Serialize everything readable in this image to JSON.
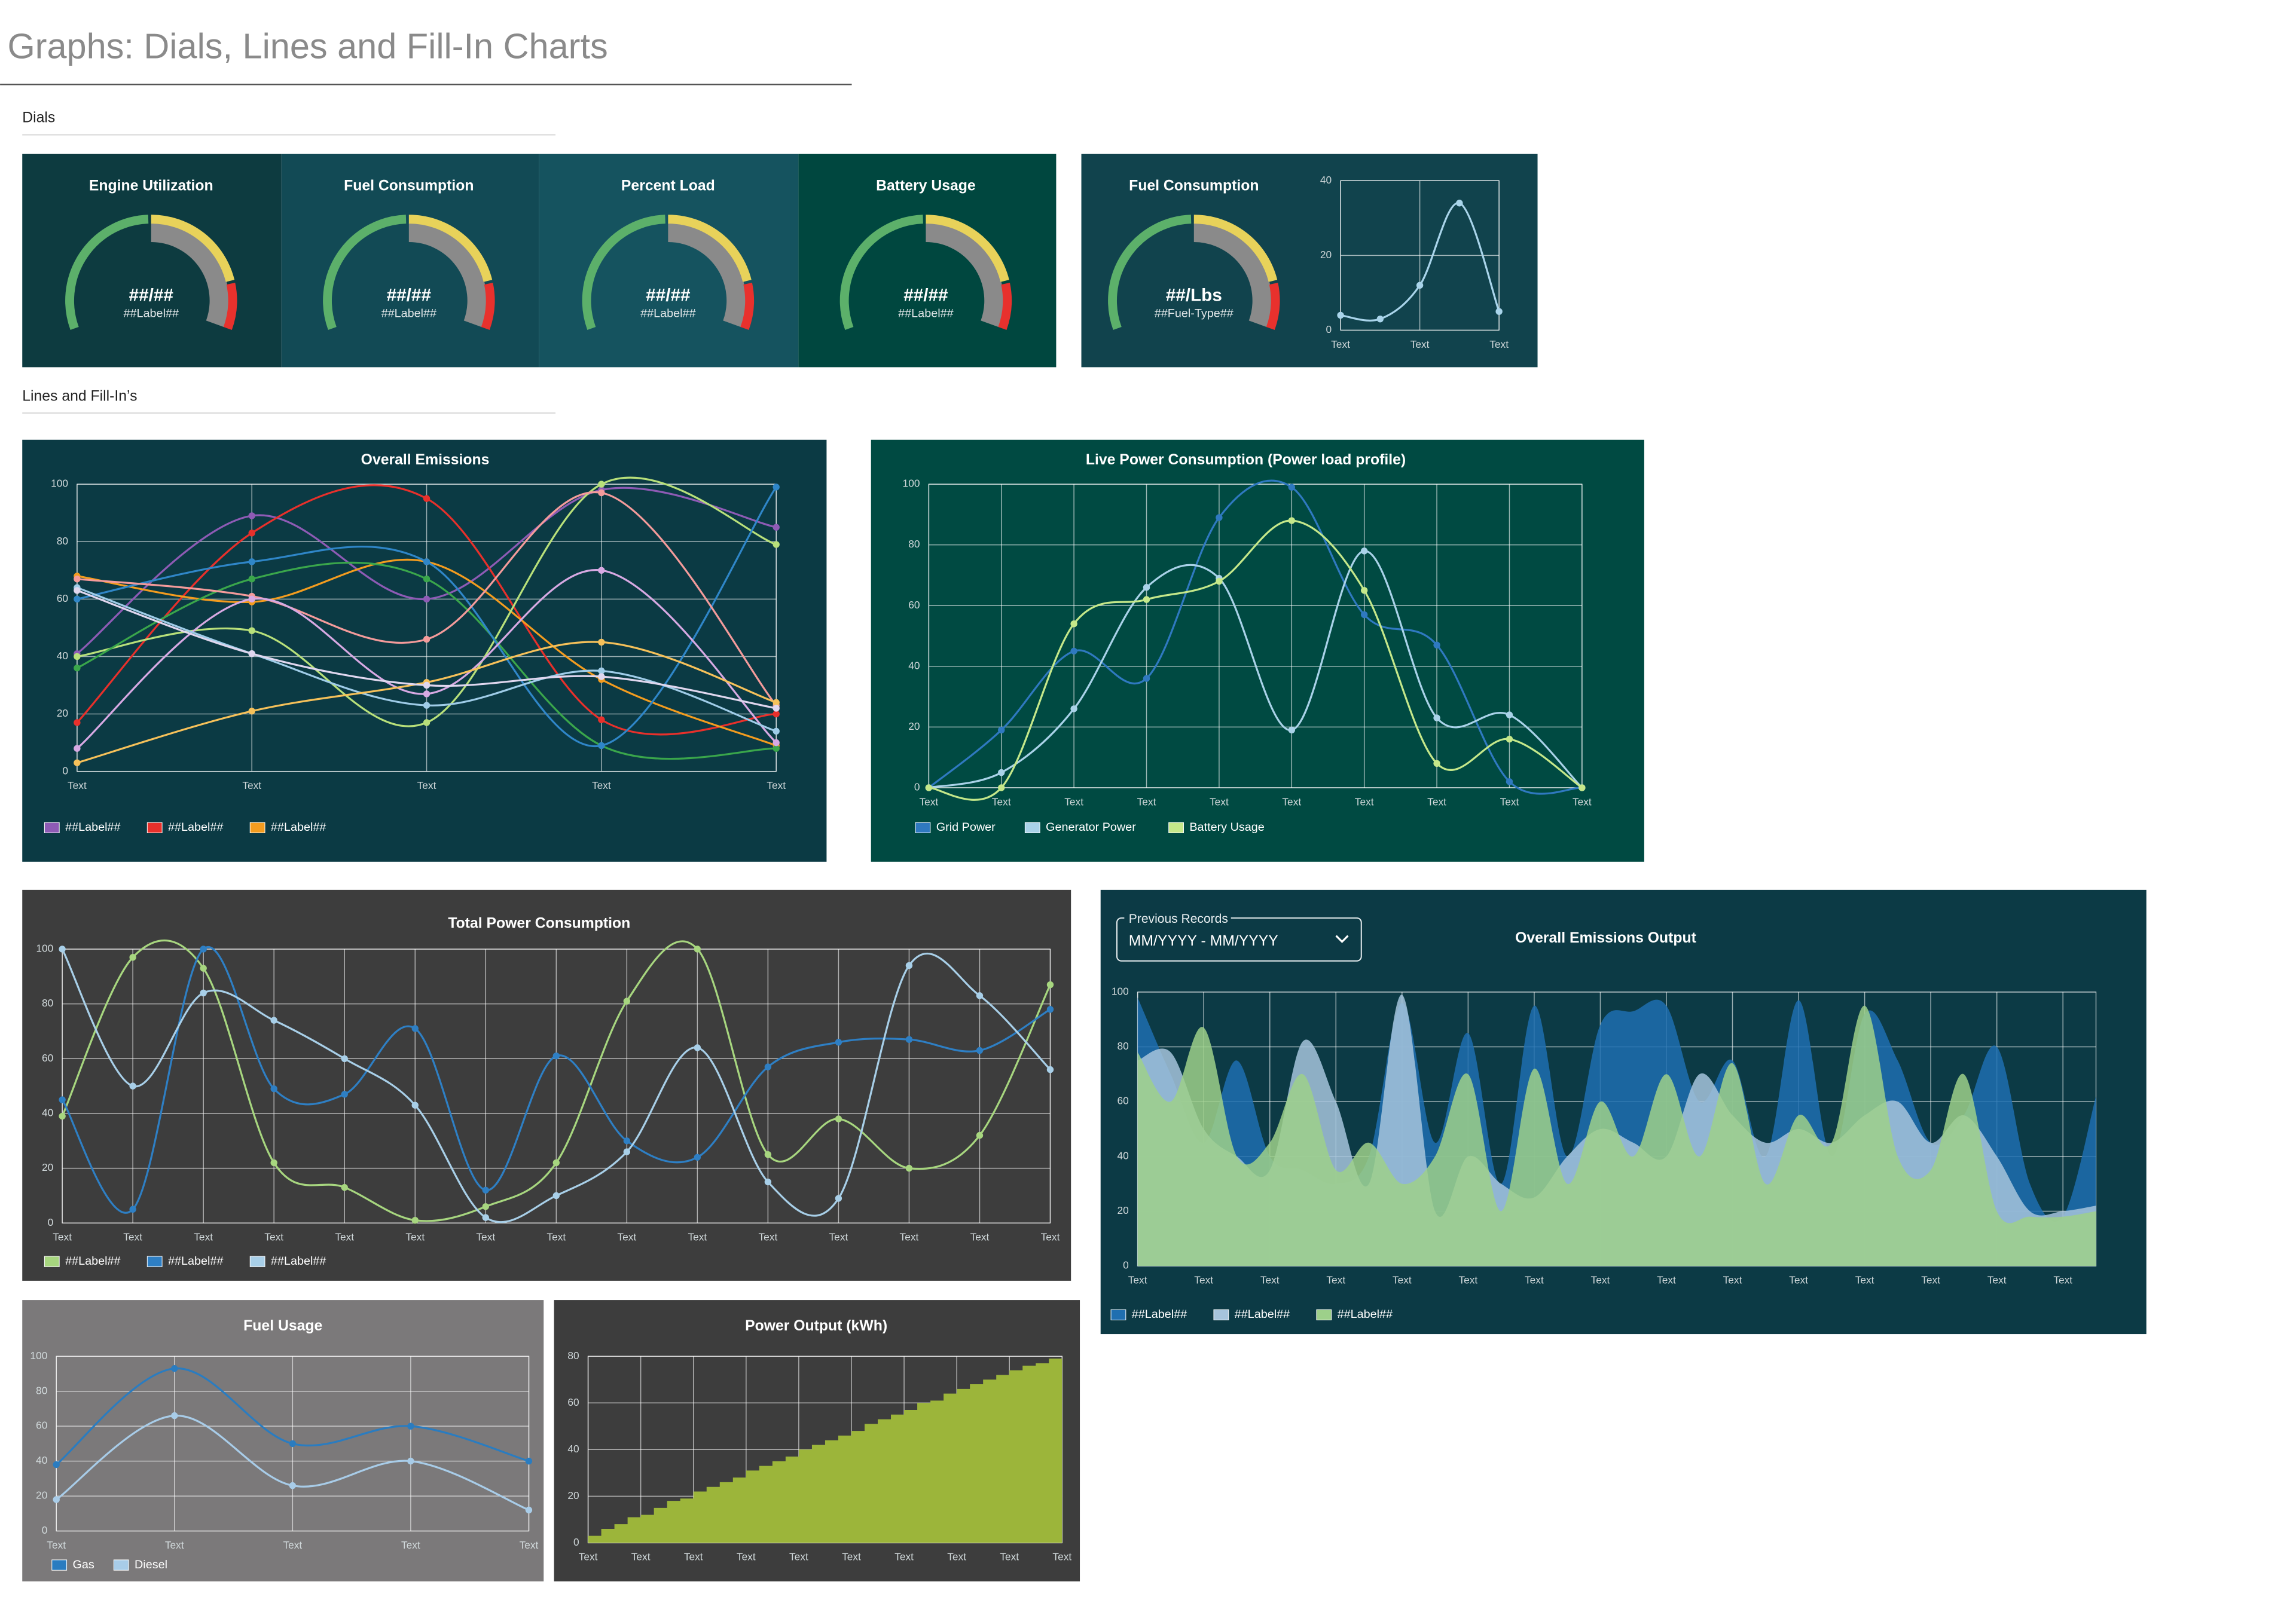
{
  "page": {
    "title": "Graphs: Dials, Lines and Fill-In Charts",
    "sections": [
      "Dials",
      "Lines and Fill-In’s"
    ]
  },
  "dials": [
    {
      "title": "Engine Utilization",
      "value": "##/##",
      "label": "##Label##"
    },
    {
      "title": "Fuel Consumption",
      "value": "##/##",
      "label": "##Label##"
    },
    {
      "title": "Percent Load",
      "value": "##/##",
      "label": "##Label##"
    },
    {
      "title": "Battery Usage",
      "value": "##/##",
      "label": "##Label##"
    },
    {
      "title": "Fuel Consumption",
      "value": "##/Lbs",
      "label": "##Fuel-Type##"
    }
  ],
  "chart_data": [
    {
      "type": "line",
      "categories": [
        "Text",
        null,
        "Text",
        null,
        "Text"
      ],
      "values": [
        4,
        3,
        12,
        34,
        5
      ],
      "color": "#a9d4ea",
      "ylim": [
        0,
        40
      ],
      "yticks": [
        0,
        20,
        40
      ],
      "grid": true
    },
    {
      "type": "line",
      "title": "Overall Emissions",
      "categories": [
        "Text",
        "Text",
        "Text",
        "Text",
        "Text"
      ],
      "series": [
        {
          "name": "##Label##",
          "color": "#8e5bb5",
          "values": [
            41,
            89,
            60,
            98,
            85
          ]
        },
        {
          "name": "##Label##",
          "color": "#e8302b",
          "values": [
            17,
            83,
            95,
            18,
            20
          ]
        },
        {
          "name": "##Label##",
          "color": "#f39c1f",
          "values": [
            68,
            59,
            73,
            32,
            9
          ]
        },
        {
          "color": "#b8e07a",
          "values": [
            40,
            49,
            17,
            100,
            79
          ]
        },
        {
          "color": "#3aa64b",
          "values": [
            36,
            67,
            67,
            9,
            8
          ]
        },
        {
          "color": "#2f86c8",
          "values": [
            60,
            73,
            73,
            9,
            99
          ]
        },
        {
          "color": "#f49b9b",
          "values": [
            67,
            61,
            46,
            97,
            23
          ]
        },
        {
          "color": "#d7a9e3",
          "values": [
            8,
            60,
            27,
            70,
            10
          ]
        },
        {
          "color": "#9fcce8",
          "values": [
            64,
            41,
            23,
            35,
            14
          ]
        },
        {
          "color": "#f6c15a",
          "values": [
            3,
            21,
            31,
            45,
            24
          ]
        },
        {
          "color": "#e0d7ef",
          "values": [
            63,
            41,
            30,
            33,
            22
          ]
        }
      ],
      "ylim": [
        0,
        100
      ],
      "yticks": [
        0,
        20,
        40,
        60,
        80,
        100
      ],
      "grid": true
    },
    {
      "type": "line",
      "title": "Live Power Consumption (Power load profile)",
      "categories": [
        "Text",
        "Text",
        "Text",
        "Text",
        "Text",
        "Text",
        "Text",
        "Text",
        "Text",
        "Text"
      ],
      "series": [
        {
          "name": "Grid Power",
          "color": "#2f79c0",
          "values": [
            0,
            19,
            45,
            36,
            89,
            99,
            57,
            47,
            2,
            0
          ]
        },
        {
          "name": "Generator Power",
          "color": "#a9d2e8",
          "values": [
            0,
            5,
            26,
            66,
            69,
            19,
            78,
            23,
            24,
            0
          ]
        },
        {
          "name": "Battery Usage",
          "color": "#c5e88a",
          "values": [
            0,
            0,
            54,
            62,
            68,
            88,
            65,
            8,
            16,
            0
          ]
        }
      ],
      "ylim": [
        0,
        100
      ],
      "yticks": [
        0,
        20,
        40,
        60,
        80,
        100
      ],
      "grid": true
    },
    {
      "type": "line",
      "title": "Total Power Consumption",
      "categories": [
        "Text",
        "Text",
        "Text",
        "Text",
        "Text",
        "Text",
        "Text",
        "Text",
        "Text",
        "Text",
        "Text",
        "Text",
        "Text",
        "Text",
        "Text"
      ],
      "series": [
        {
          "name": "##Label##",
          "color": "#a7d67f",
          "values": [
            39,
            97,
            93,
            22,
            13,
            1,
            6,
            22,
            81,
            100,
            25,
            38,
            20,
            32,
            87
          ]
        },
        {
          "name": "##Label##",
          "color": "#2e7fc4",
          "values": [
            45,
            5,
            100,
            49,
            47,
            71,
            12,
            61,
            30,
            24,
            57,
            66,
            67,
            63,
            78
          ]
        },
        {
          "name": "##Label##",
          "color": "#a8cfe8",
          "values": [
            100,
            50,
            84,
            74,
            60,
            43,
            2,
            10,
            26,
            64,
            15,
            9,
            94,
            83,
            56
          ]
        }
      ],
      "ylim": [
        0,
        100
      ],
      "yticks": [
        0,
        20,
        40,
        60,
        80,
        100
      ],
      "grid": true
    },
    {
      "type": "area",
      "title": "Overall Emissions Output",
      "filter_label": "Previous Records",
      "filter_value": "MM/YYYY - MM/YYYY",
      "categories": [
        "Text",
        null,
        "Text",
        null,
        "Text",
        null,
        "Text",
        null,
        "Text",
        null,
        "Text",
        null,
        "Text",
        null,
        "Text",
        null,
        "Text",
        null,
        "Text",
        null,
        "Text",
        null,
        "Text",
        null,
        "Text",
        null,
        "Text",
        null,
        "Text",
        null
      ],
      "series": [
        {
          "name": "##Label##",
          "color": "#1f6fb0",
          "values": [
            98,
            70,
            45,
            75,
            40,
            35,
            30,
            40,
            96,
            45,
            85,
            30,
            95,
            40,
            88,
            93,
            95,
            60,
            75,
            40,
            97,
            40,
            92,
            75,
            45,
            55,
            80,
            30,
            18,
            62
          ]
        },
        {
          "name": "##Label##",
          "color": "#a6c4dc",
          "values": [
            75,
            78,
            50,
            40,
            35,
            82,
            60,
            30,
            99,
            20,
            40,
            30,
            25,
            40,
            50,
            45,
            40,
            70,
            55,
            45,
            50,
            45,
            55,
            60,
            45,
            55,
            40,
            20,
            20,
            22
          ]
        },
        {
          "name": "##Label##",
          "color": "#9dd08a",
          "values": [
            78,
            60,
            87,
            40,
            45,
            70,
            35,
            45,
            30,
            40,
            70,
            20,
            72,
            30,
            60,
            40,
            70,
            40,
            74,
            30,
            55,
            45,
            95,
            40,
            35,
            70,
            20,
            18,
            18,
            20
          ]
        }
      ],
      "ylim": [
        0,
        100
      ],
      "yticks": [
        0,
        20,
        40,
        60,
        80,
        100
      ],
      "grid": true
    },
    {
      "type": "line",
      "title": "Fuel Usage",
      "categories": [
        "Text",
        "Text",
        "Text",
        "Text",
        "Text"
      ],
      "series": [
        {
          "name": "Gas",
          "color": "#2a7cc0",
          "values": [
            38,
            93,
            50,
            60,
            40
          ]
        },
        {
          "name": "Diesel",
          "color": "#a8cce8",
          "values": [
            18,
            66,
            26,
            40,
            12
          ]
        }
      ],
      "ylim": [
        0,
        100
      ],
      "yticks": [
        0,
        20,
        40,
        60,
        80,
        100
      ],
      "grid": true
    },
    {
      "type": "step",
      "title": "Power Output (kWh)",
      "categories": [
        "Text",
        null,
        null,
        null,
        "Text",
        null,
        null,
        null,
        "Text",
        null,
        null,
        null,
        "Text",
        null,
        null,
        null,
        "Text",
        null,
        null,
        null,
        "Text",
        null,
        null,
        null,
        "Text",
        null,
        null,
        null,
        "Text",
        null,
        null,
        null,
        "Text",
        null,
        null,
        null,
        "Text"
      ],
      "values": [
        3,
        6,
        8,
        11,
        12,
        15,
        18,
        19,
        22,
        24,
        26,
        28,
        31,
        33,
        35,
        37,
        40,
        42,
        44,
        46,
        48,
        51,
        53,
        55,
        57,
        60,
        61,
        64,
        66,
        68,
        70,
        72,
        74,
        76,
        77,
        79,
        80
      ],
      "color": "#9cb53a",
      "ylim": [
        0,
        80
      ],
      "yticks": [
        0,
        20,
        40,
        60,
        80
      ],
      "grid": true
    }
  ]
}
